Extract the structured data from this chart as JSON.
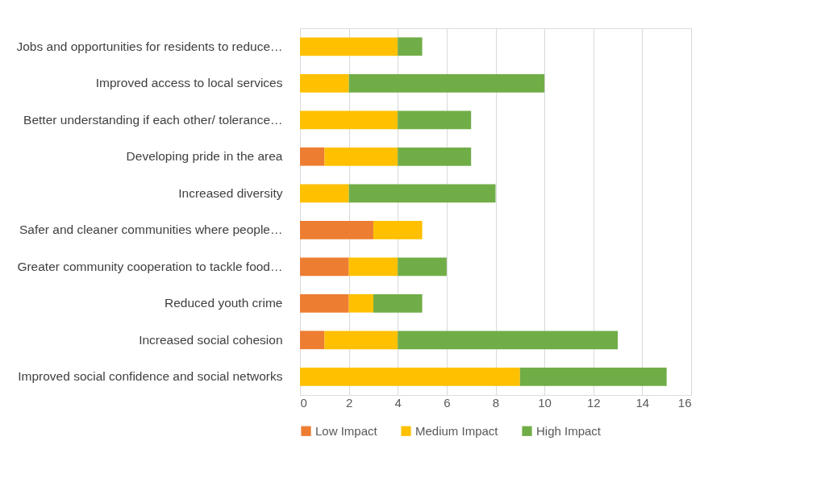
{
  "chart_data": {
    "type": "bar",
    "orientation": "horizontal",
    "stacked": true,
    "categories": [
      "Jobs and opportunities for residents to reduce…",
      "Improved access to local services",
      "Better understanding if each other/ tolerance…",
      "Developing pride in the area",
      "Increased diversity",
      "Safer and cleaner communities where people…",
      "Greater community cooperation to tackle food…",
      "Reduced youth crime",
      "Increased social cohesion",
      "Improved social confidence and social networks"
    ],
    "series": [
      {
        "name": "Low Impact",
        "color": "#ed7d31",
        "values": [
          0,
          0,
          0,
          1,
          0,
          3,
          2,
          2,
          1,
          0
        ]
      },
      {
        "name": "Medium Impact",
        "color": "#ffc000",
        "values": [
          4,
          2,
          4,
          3,
          2,
          2,
          2,
          1,
          3,
          9
        ]
      },
      {
        "name": "High Impact",
        "color": "#70ad47",
        "values": [
          1,
          8,
          3,
          3,
          6,
          0,
          2,
          2,
          9,
          6
        ]
      }
    ],
    "xlim": [
      0,
      16
    ],
    "xticks": [
      0,
      2,
      4,
      6,
      8,
      10,
      12,
      14,
      16
    ],
    "grid": "x",
    "legend": "bottom"
  }
}
